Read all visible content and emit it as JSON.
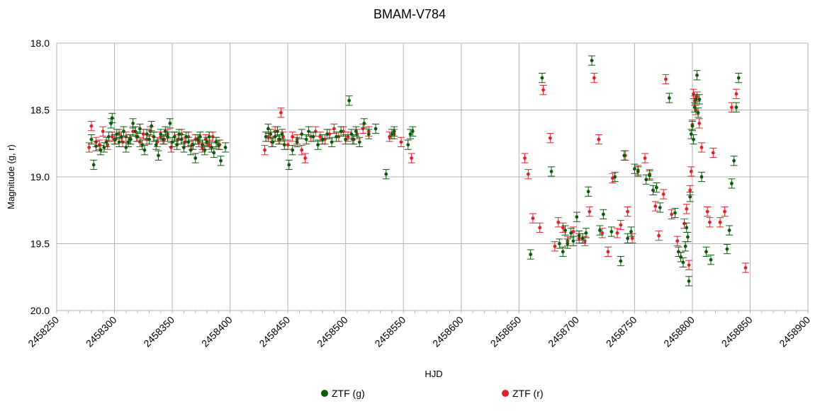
{
  "chart_data": {
    "type": "scatter",
    "title": "BMAM-V784",
    "xlabel": "HJD",
    "ylabel": "Magnitude (g, r)",
    "xlim": [
      2458250,
      2458900
    ],
    "ylim": [
      18.0,
      20.0
    ],
    "y_inverted": true,
    "x_ticks": [
      "2458250",
      "2458300",
      "2458350",
      "2458400",
      "2458450",
      "2458500",
      "2458550",
      "2458600",
      "2458650",
      "2458700",
      "2458750",
      "2458800",
      "2458850",
      "2458900"
    ],
    "y_ticks": [
      "18.0",
      "18.5",
      "19.0",
      "19.5",
      "20.0"
    ],
    "grid": true,
    "legend_position": "bottom",
    "series": [
      {
        "name": "ZTF (g)",
        "color": "#0a5c0a",
        "err": 0.035,
        "points": [
          [
            2458280,
            18.72
          ],
          [
            2458282,
            18.91
          ],
          [
            2458284,
            18.77
          ],
          [
            2458288,
            18.8
          ],
          [
            2458291,
            18.78
          ],
          [
            2458293,
            18.74
          ],
          [
            2458295,
            18.7
          ],
          [
            2458297,
            18.6
          ],
          [
            2458298,
            18.56
          ],
          [
            2458300,
            18.72
          ],
          [
            2458302,
            18.68
          ],
          [
            2458304,
            18.74
          ],
          [
            2458306,
            18.7
          ],
          [
            2458308,
            18.66
          ],
          [
            2458310,
            18.78
          ],
          [
            2458312,
            18.74
          ],
          [
            2458314,
            18.72
          ],
          [
            2458316,
            18.6
          ],
          [
            2458318,
            18.66
          ],
          [
            2458320,
            18.7
          ],
          [
            2458322,
            18.64
          ],
          [
            2458324,
            18.76
          ],
          [
            2458326,
            18.8
          ],
          [
            2458328,
            18.68
          ],
          [
            2458330,
            18.72
          ],
          [
            2458332,
            18.62
          ],
          [
            2458334,
            18.7
          ],
          [
            2458336,
            18.76
          ],
          [
            2458338,
            18.84
          ],
          [
            2458340,
            18.68
          ],
          [
            2458342,
            18.72
          ],
          [
            2458344,
            18.66
          ],
          [
            2458346,
            18.7
          ],
          [
            2458348,
            18.6
          ],
          [
            2458350,
            18.74
          ],
          [
            2458352,
            18.7
          ],
          [
            2458354,
            18.76
          ],
          [
            2458356,
            18.68
          ],
          [
            2458358,
            18.72
          ],
          [
            2458360,
            18.78
          ],
          [
            2458362,
            18.7
          ],
          [
            2458364,
            18.74
          ],
          [
            2458366,
            18.8
          ],
          [
            2458368,
            18.76
          ],
          [
            2458370,
            18.86
          ],
          [
            2458372,
            18.72
          ],
          [
            2458374,
            18.7
          ],
          [
            2458376,
            18.76
          ],
          [
            2458378,
            18.8
          ],
          [
            2458380,
            18.74
          ],
          [
            2458382,
            18.7
          ],
          [
            2458384,
            18.78
          ],
          [
            2458386,
            18.82
          ],
          [
            2458388,
            18.74
          ],
          [
            2458390,
            18.76
          ],
          [
            2458392,
            18.88
          ],
          [
            2458396,
            18.78
          ],
          [
            2458431,
            18.7
          ],
          [
            2458433,
            18.64
          ],
          [
            2458435,
            18.68
          ],
          [
            2458437,
            18.74
          ],
          [
            2458439,
            18.7
          ],
          [
            2458441,
            18.66
          ],
          [
            2458443,
            18.72
          ],
          [
            2458445,
            18.68
          ],
          [
            2458447,
            18.76
          ],
          [
            2458451,
            18.91
          ],
          [
            2458454,
            18.8
          ],
          [
            2458458,
            18.74
          ],
          [
            2458462,
            18.68
          ],
          [
            2458466,
            18.72
          ],
          [
            2458468,
            18.66
          ],
          [
            2458472,
            18.7
          ],
          [
            2458476,
            18.76
          ],
          [
            2458480,
            18.72
          ],
          [
            2458484,
            18.68
          ],
          [
            2458488,
            18.74
          ],
          [
            2458492,
            18.7
          ],
          [
            2458496,
            18.66
          ],
          [
            2458500,
            18.72
          ],
          [
            2458503,
            18.43
          ],
          [
            2458505,
            18.68
          ],
          [
            2458507,
            18.72
          ],
          [
            2458509,
            18.66
          ],
          [
            2458512,
            18.74
          ],
          [
            2458516,
            18.6
          ],
          [
            2458520,
            18.68
          ],
          [
            2458526,
            18.64
          ],
          [
            2458535,
            18.98
          ],
          [
            2458540,
            18.68
          ],
          [
            2458542,
            18.66
          ],
          [
            2458554,
            18.76
          ],
          [
            2458556,
            18.68
          ],
          [
            2458558,
            18.66
          ],
          [
            2458660,
            19.58
          ],
          [
            2458670,
            18.26
          ],
          [
            2458678,
            18.96
          ],
          [
            2458685,
            19.5
          ],
          [
            2458688,
            19.56
          ],
          [
            2458690,
            19.4
          ],
          [
            2458692,
            19.5
          ],
          [
            2458695,
            19.42
          ],
          [
            2458697,
            19.48
          ],
          [
            2458700,
            19.3
          ],
          [
            2458702,
            19.44
          ],
          [
            2458705,
            19.46
          ],
          [
            2458708,
            19.42
          ],
          [
            2458710,
            19.11
          ],
          [
            2458713,
            18.13
          ],
          [
            2458720,
            19.4
          ],
          [
            2458723,
            19.28
          ],
          [
            2458730,
            19.41
          ],
          [
            2458733,
            19.0
          ],
          [
            2458738,
            19.63
          ],
          [
            2458741,
            18.84
          ],
          [
            2458744,
            19.46
          ],
          [
            2458747,
            19.41
          ],
          [
            2458750,
            18.94
          ],
          [
            2458753,
            18.96
          ],
          [
            2458760,
            19.02
          ],
          [
            2458763,
            18.99
          ],
          [
            2458766,
            19.1
          ],
          [
            2458769,
            19.08
          ],
          [
            2458772,
            19.23
          ],
          [
            2458780,
            18.41
          ],
          [
            2458785,
            19.27
          ],
          [
            2458788,
            19.56
          ],
          [
            2458790,
            19.6
          ],
          [
            2458792,
            19.64
          ],
          [
            2458794,
            19.52
          ],
          [
            2458795,
            19.38
          ],
          [
            2458796,
            19.45
          ],
          [
            2458797,
            19.78
          ],
          [
            2458798,
            19.15
          ],
          [
            2458799,
            18.68
          ],
          [
            2458800,
            18.62
          ],
          [
            2458801,
            18.72
          ],
          [
            2458802,
            18.48
          ],
          [
            2458803,
            18.42
          ],
          [
            2458804,
            18.24
          ],
          [
            2458805,
            18.52
          ],
          [
            2458806,
            18.42
          ],
          [
            2458808,
            19.0
          ],
          [
            2458812,
            19.56
          ],
          [
            2458816,
            19.62
          ],
          [
            2458830,
            19.54
          ],
          [
            2458832,
            19.4
          ],
          [
            2458834,
            19.05
          ],
          [
            2458836,
            18.88
          ],
          [
            2458838,
            18.48
          ],
          [
            2458840,
            18.26
          ]
        ]
      },
      {
        "name": "ZTF (r)",
        "color": "#e0202a",
        "err": 0.035,
        "points": [
          [
            2458278,
            18.78
          ],
          [
            2458280,
            18.62
          ],
          [
            2458284,
            18.74
          ],
          [
            2458287,
            18.76
          ],
          [
            2458290,
            18.66
          ],
          [
            2458294,
            18.76
          ],
          [
            2458298,
            18.7
          ],
          [
            2458301,
            18.72
          ],
          [
            2458304,
            18.68
          ],
          [
            2458307,
            18.74
          ],
          [
            2458310,
            18.7
          ],
          [
            2458313,
            18.72
          ],
          [
            2458316,
            18.66
          ],
          [
            2458319,
            18.7
          ],
          [
            2458322,
            18.74
          ],
          [
            2458325,
            18.68
          ],
          [
            2458328,
            18.72
          ],
          [
            2458331,
            18.66
          ],
          [
            2458334,
            18.7
          ],
          [
            2458337,
            18.74
          ],
          [
            2458340,
            18.7
          ],
          [
            2458343,
            18.72
          ],
          [
            2458346,
            18.68
          ],
          [
            2458349,
            18.78
          ],
          [
            2458352,
            18.7
          ],
          [
            2458355,
            18.72
          ],
          [
            2458358,
            18.68
          ],
          [
            2458361,
            18.74
          ],
          [
            2458364,
            18.7
          ],
          [
            2458367,
            18.76
          ],
          [
            2458370,
            18.72
          ],
          [
            2458373,
            18.74
          ],
          [
            2458376,
            18.78
          ],
          [
            2458379,
            18.72
          ],
          [
            2458382,
            18.76
          ],
          [
            2458385,
            18.7
          ],
          [
            2458388,
            18.74
          ],
          [
            2458391,
            18.76
          ],
          [
            2458430,
            18.8
          ],
          [
            2458433,
            18.7
          ],
          [
            2458436,
            18.74
          ],
          [
            2458439,
            18.66
          ],
          [
            2458442,
            18.72
          ],
          [
            2458444,
            18.52
          ],
          [
            2458446,
            18.7
          ],
          [
            2458450,
            18.76
          ],
          [
            2458454,
            18.7
          ],
          [
            2458458,
            18.72
          ],
          [
            2458462,
            18.8
          ],
          [
            2458465,
            18.86
          ],
          [
            2458470,
            18.7
          ],
          [
            2458474,
            18.66
          ],
          [
            2458478,
            18.7
          ],
          [
            2458482,
            18.72
          ],
          [
            2458486,
            18.68
          ],
          [
            2458490,
            18.64
          ],
          [
            2458494,
            18.7
          ],
          [
            2458498,
            18.66
          ],
          [
            2458502,
            18.7
          ],
          [
            2458506,
            18.72
          ],
          [
            2458510,
            18.68
          ],
          [
            2458515,
            18.64
          ],
          [
            2458520,
            18.66
          ],
          [
            2458538,
            18.7
          ],
          [
            2458542,
            18.68
          ],
          [
            2458548,
            18.74
          ],
          [
            2458557,
            18.86
          ],
          [
            2458655,
            18.86
          ],
          [
            2458658,
            18.98
          ],
          [
            2458662,
            19.31
          ],
          [
            2458668,
            19.38
          ],
          [
            2458671,
            18.35
          ],
          [
            2458677,
            18.71
          ],
          [
            2458681,
            19.52
          ],
          [
            2458684,
            19.34
          ],
          [
            2458688,
            19.38
          ],
          [
            2458692,
            19.48
          ],
          [
            2458697,
            19.41
          ],
          [
            2458702,
            19.46
          ],
          [
            2458707,
            19.48
          ],
          [
            2458711,
            19.26
          ],
          [
            2458715,
            18.26
          ],
          [
            2458719,
            18.72
          ],
          [
            2458722,
            19.42
          ],
          [
            2458727,
            19.56
          ],
          [
            2458731,
            19.01
          ],
          [
            2458735,
            19.42
          ],
          [
            2458738,
            19.36
          ],
          [
            2458742,
            18.84
          ],
          [
            2458744,
            19.26
          ],
          [
            2458748,
            19.46
          ],
          [
            2458753,
            18.95
          ],
          [
            2458759,
            18.86
          ],
          [
            2458763,
            18.98
          ],
          [
            2458768,
            19.22
          ],
          [
            2458771,
            19.44
          ],
          [
            2458775,
            19.13
          ],
          [
            2458777,
            18.27
          ],
          [
            2458782,
            19.28
          ],
          [
            2458787,
            19.48
          ],
          [
            2458790,
            19.6
          ],
          [
            2458793,
            19.35
          ],
          [
            2458795,
            19.24
          ],
          [
            2458797,
            19.66
          ],
          [
            2458798,
            19.1
          ],
          [
            2458799,
            18.96
          ],
          [
            2458800,
            18.61
          ],
          [
            2458801,
            18.38
          ],
          [
            2458802,
            18.43
          ],
          [
            2458803,
            18.5
          ],
          [
            2458804,
            18.4
          ],
          [
            2458806,
            18.6
          ],
          [
            2458808,
            18.78
          ],
          [
            2458813,
            19.26
          ],
          [
            2458815,
            19.34
          ],
          [
            2458818,
            18.82
          ],
          [
            2458824,
            19.34
          ],
          [
            2458828,
            19.26
          ],
          [
            2458834,
            18.48
          ],
          [
            2458838,
            18.38
          ],
          [
            2458846,
            19.68
          ]
        ]
      }
    ]
  }
}
